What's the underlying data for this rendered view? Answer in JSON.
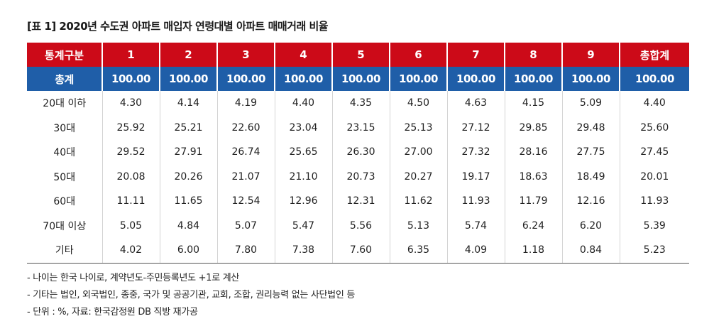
{
  "title": "[표 1]  2020년 수도권 아파트 매입자 연령대별 아파트 매매거래 비율",
  "table": {
    "headers": [
      "통계구분",
      "1",
      "2",
      "3",
      "4",
      "5",
      "6",
      "7",
      "8",
      "9",
      "총합계"
    ],
    "total_row": [
      "총계",
      "100.00",
      "100.00",
      "100.00",
      "100.00",
      "100.00",
      "100.00",
      "100.00",
      "100.00",
      "100.00",
      "100.00"
    ],
    "rows": [
      [
        "20대 이하",
        "4.30",
        "4.14",
        "4.19",
        "4.40",
        "4.35",
        "4.50",
        "4.63",
        "4.15",
        "5.09",
        "4.40"
      ],
      [
        "30대",
        "25.92",
        "25.21",
        "22.60",
        "23.04",
        "23.15",
        "25.13",
        "27.12",
        "29.85",
        "29.48",
        "25.60"
      ],
      [
        "40대",
        "29.52",
        "27.91",
        "26.74",
        "25.65",
        "26.30",
        "27.00",
        "27.32",
        "28.16",
        "27.75",
        "27.45"
      ],
      [
        "50대",
        "20.08",
        "20.26",
        "21.07",
        "21.10",
        "20.73",
        "20.27",
        "19.17",
        "18.63",
        "18.49",
        "20.01"
      ],
      [
        "60대",
        "11.11",
        "11.65",
        "12.54",
        "12.96",
        "12.31",
        "11.62",
        "11.93",
        "11.79",
        "12.16",
        "11.93"
      ],
      [
        "70대 이상",
        "5.05",
        "4.84",
        "5.07",
        "5.47",
        "5.56",
        "5.13",
        "5.74",
        "6.24",
        "6.20",
        "5.39"
      ],
      [
        "기타",
        "4.02",
        "6.00",
        "7.80",
        "7.38",
        "7.60",
        "6.35",
        "4.09",
        "1.18",
        "0.84",
        "5.23"
      ]
    ]
  },
  "notes": [
    "- 나이는 한국 나이로, 계약년도-주민등록년도 +1로 계산",
    "- 기타는 법인, 외국법인, 종중, 국가 및 공공기관, 교회, 조합, 권리능력 없는 사단법인 등",
    "- 단위 : %, 자료: 한국감정원 DB 직방 재가공"
  ],
  "colors": {
    "header_bg": "#cc0a18",
    "total_bg": "#1f5ea8"
  }
}
